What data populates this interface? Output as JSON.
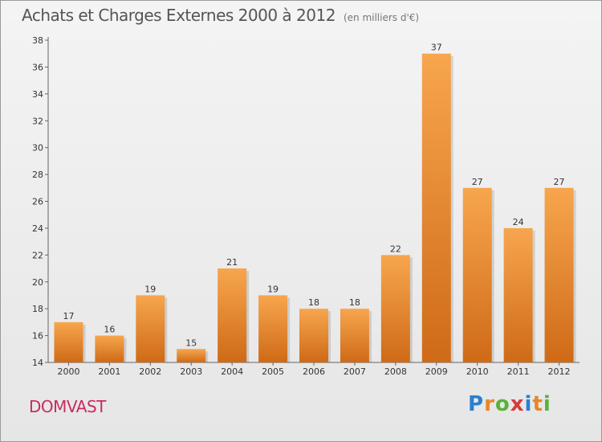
{
  "header": {
    "title": "Achats et Charges Externes 2000 à 2012",
    "subtitle": "(en milliers d'€)"
  },
  "footer": {
    "commune": "DOMVAST",
    "brand": [
      "P",
      "r",
      "o",
      "x",
      "i",
      "t",
      "i"
    ],
    "brand_colors": [
      "#2a7fd1",
      "#e8862a",
      "#58b33a",
      "#d63a3a",
      "#2a7fd1",
      "#e8862a",
      "#58b33a"
    ]
  },
  "chart_data": {
    "type": "bar",
    "categories": [
      "2000",
      "2001",
      "2002",
      "2003",
      "2004",
      "2005",
      "2006",
      "2007",
      "2008",
      "2009",
      "2010",
      "2011",
      "2012"
    ],
    "values": [
      17,
      16,
      19,
      15,
      21,
      19,
      18,
      18,
      22,
      37,
      27,
      24,
      27
    ],
    "ylim": [
      14,
      38
    ],
    "yticks": [
      14,
      16,
      18,
      20,
      22,
      24,
      26,
      28,
      30,
      32,
      34,
      36,
      38
    ],
    "grid": false,
    "bar_color_top": "#f7a64e",
    "bar_color_bottom": "#cf6a17"
  }
}
